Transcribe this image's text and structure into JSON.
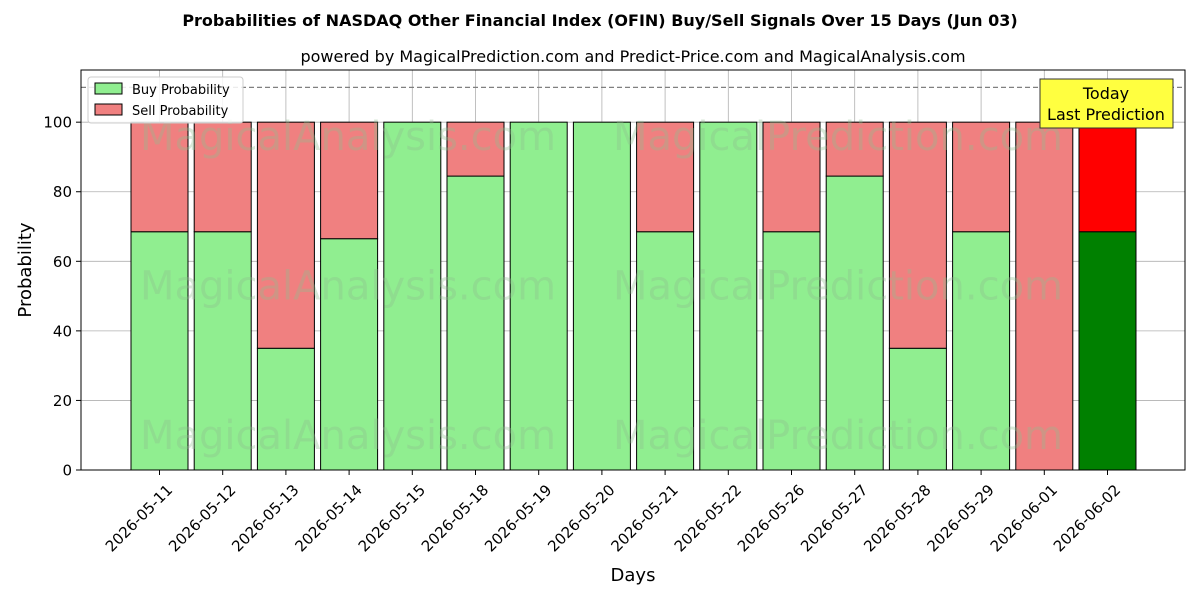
{
  "chart_data": {
    "type": "bar",
    "title": "Probabilities of NASDAQ Other Financial Index (OFIN) Buy/Sell Signals Over 15 Days (Jun 03)",
    "subtitle": "powered by MagicalPrediction.com and Predict-Price.com and MagicalAnalysis.com",
    "xlabel": "Days",
    "ylabel": "Probability",
    "ylim": [
      0,
      115
    ],
    "yticks": [
      0,
      20,
      40,
      60,
      80,
      100
    ],
    "reference_line": 110,
    "grid": true,
    "stacked": true,
    "legend_position": "top-left",
    "categories": [
      "2026-05-11",
      "2026-05-12",
      "2026-05-13",
      "2026-05-14",
      "2026-05-15",
      "2026-05-18",
      "2026-05-19",
      "2026-05-20",
      "2026-05-21",
      "2026-05-22",
      "2026-05-26",
      "2026-05-27",
      "2026-05-28",
      "2026-05-29",
      "2026-06-01",
      "2026-06-02"
    ],
    "series": [
      {
        "name": "Buy Probability",
        "color": "#90ee90",
        "highlight_color": "#008000",
        "values": [
          68.5,
          68.5,
          35,
          66.5,
          100,
          84.5,
          100,
          100,
          68.5,
          100,
          68.5,
          84.5,
          35,
          68.5,
          0,
          68.5
        ]
      },
      {
        "name": "Sell Probability",
        "color": "#f08080",
        "highlight_color": "#ff0000",
        "values": [
          31.5,
          31.5,
          65,
          33.5,
          0,
          15.5,
          0,
          0,
          31.5,
          0,
          31.5,
          15.5,
          65,
          31.5,
          100,
          31.5
        ]
      }
    ],
    "highlight_index": 15,
    "annotation": {
      "line1": "Today",
      "line2": "Last Prediction",
      "background": "#ffff40"
    },
    "watermarks": [
      "MagicalAnalysis.com",
      "MagicalPrediction.com"
    ]
  }
}
